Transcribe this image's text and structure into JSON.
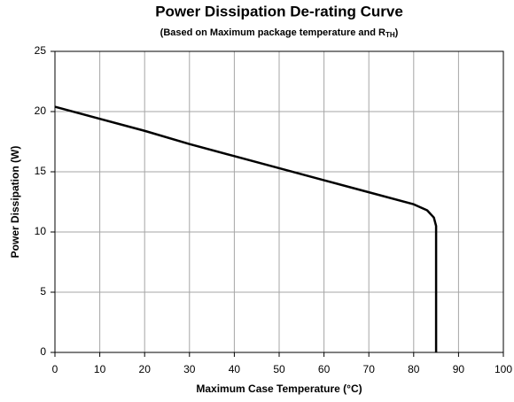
{
  "chart_data": {
    "type": "line",
    "title": "Power Dissipation De-rating Curve",
    "subtitle": [
      "(Based on Maximum package temperature and R",
      "TH",
      ")"
    ],
    "x_label": "Maximum Case Temperature (°C)",
    "y_label": "Power Dissipation (W)",
    "x": [
      0,
      10,
      20,
      30,
      40,
      50,
      60,
      70,
      80,
      83,
      84.5,
      85,
      85
    ],
    "series": [
      {
        "name": "Power Dissipation",
        "color": "#000000",
        "values": [
          20.4,
          19.4,
          18.4,
          17.3,
          16.3,
          15.3,
          14.3,
          13.3,
          12.3,
          11.8,
          11.2,
          10.5,
          0
        ]
      }
    ],
    "xlim": [
      0,
      100
    ],
    "ylim": [
      0,
      25
    ],
    "xticks": [
      0,
      10,
      20,
      30,
      40,
      50,
      60,
      70,
      80,
      90,
      100
    ],
    "yticks": [
      0,
      5,
      10,
      15,
      20,
      25
    ],
    "grid": true
  }
}
